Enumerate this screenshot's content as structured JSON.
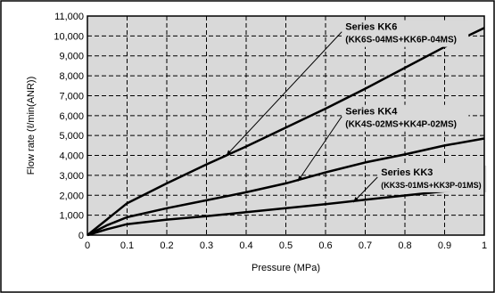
{
  "chart_data": {
    "type": "line",
    "xlabel": "Pressure (MPa)",
    "ylabel": "Flow rate (ℓ/min(ANR))",
    "xlim": [
      0,
      1
    ],
    "ylim": [
      0,
      11000
    ],
    "x_ticks": [
      "0",
      "0.1",
      "0.2",
      "0.3",
      "0.4",
      "0.5",
      "0.6",
      "0.7",
      "0.8",
      "0.9",
      "1"
    ],
    "y_ticks": [
      "0",
      "1,000",
      "2,000",
      "3,000",
      "4,000",
      "5,000",
      "6,000",
      "7,000",
      "8,000",
      "9,000",
      "10,000",
      "11,000"
    ],
    "grid": true,
    "background": "#d9d9d9",
    "line_color": "#000000",
    "series": [
      {
        "name": "Series KK6",
        "detail": "(KK6S-04MS+KK6P-04MS)",
        "x": [
          0,
          0.05,
          0.1,
          0.2,
          0.3,
          0.4,
          0.5,
          0.6,
          0.7,
          0.8,
          0.9,
          1.0
        ],
        "y": [
          0,
          800,
          1600,
          2600,
          3550,
          4450,
          5400,
          6350,
          7350,
          8400,
          9450,
          10400
        ]
      },
      {
        "name": "Series KK4",
        "detail": "(KK4S-02MS+KK4P-02MS)",
        "x": [
          0,
          0.05,
          0.1,
          0.2,
          0.3,
          0.4,
          0.5,
          0.6,
          0.7,
          0.8,
          0.9,
          1.0
        ],
        "y": [
          0,
          500,
          900,
          1350,
          1750,
          2150,
          2600,
          3150,
          3650,
          4050,
          4500,
          4850
        ]
      },
      {
        "name": "Series KK3",
        "detail": "(KK3S-01MS+KK3P-01MS)",
        "x": [
          0,
          0.05,
          0.1,
          0.2,
          0.3,
          0.4,
          0.5,
          0.6,
          0.7,
          0.8,
          0.9,
          1.0
        ],
        "y": [
          0,
          300,
          550,
          780,
          950,
          1150,
          1350,
          1550,
          1780,
          1990,
          2200,
          2320
        ]
      }
    ],
    "annotations": [
      {
        "series": "Series KK6",
        "text": "Series KK6",
        "sub": "(KK6S-04MS+KK6P-04MS)",
        "label_x": 0.65,
        "label_y": 10300,
        "point_x": 0.35,
        "point_y": 4000
      },
      {
        "series": "Series KK4",
        "text": "Series KK4",
        "sub": "(KK4S-02MS+KK4P-02MS)",
        "label_x": 0.65,
        "label_y": 6050,
        "point_x": 0.53,
        "point_y": 2700
      },
      {
        "series": "Series KK3",
        "text": "Series KK3",
        "sub": "(KK3S-01MS+KK3P-01MS)",
        "label_x": 0.74,
        "label_y": 3000,
        "point_x": 0.67,
        "point_y": 1650
      }
    ]
  }
}
